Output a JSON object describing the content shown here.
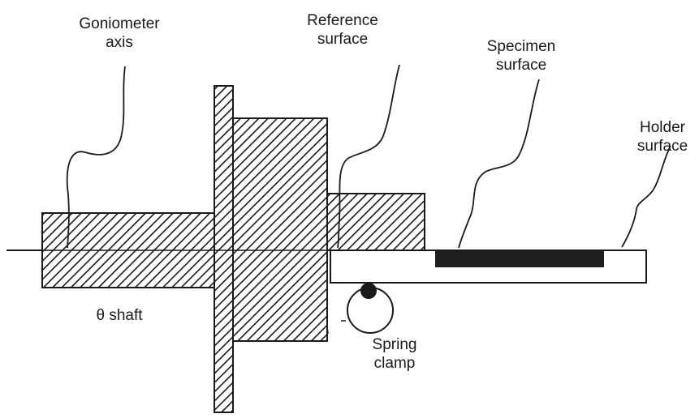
{
  "labels": {
    "goniometer_axis": [
      "Goniometer",
      "axis"
    ],
    "reference_surface": [
      "Reference",
      "surface"
    ],
    "specimen_surface": [
      "Specimen",
      "surface"
    ],
    "holder_surface": [
      "Holder",
      "surface"
    ],
    "theta_shaft": "θ shaft",
    "spring_clamp": [
      "Spring",
      "clamp"
    ]
  }
}
